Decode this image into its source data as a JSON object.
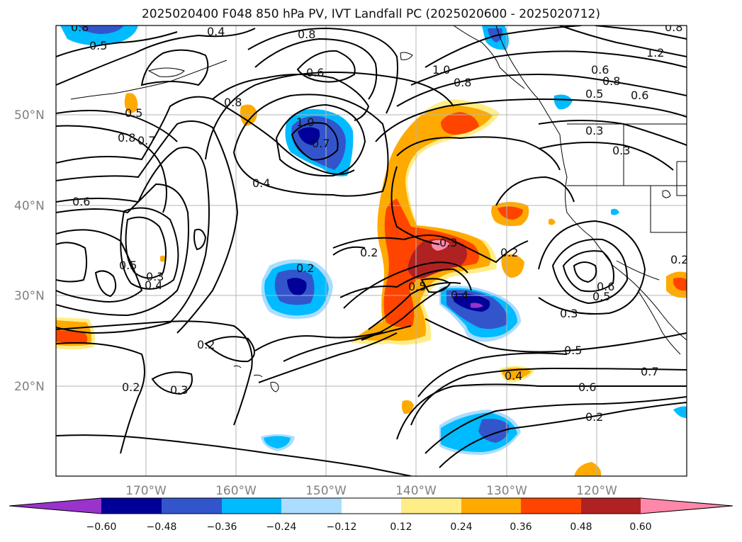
{
  "title": "2025020400 F048 850 hPa PV, IVT Landfall PC (2025020600 - 2025020712)",
  "lat_labels": [
    "50°N",
    "40°N",
    "30°N",
    "20°N"
  ],
  "lon_labels": [
    "170°W",
    "160°W",
    "150°W",
    "140°W",
    "130°W",
    "120°W"
  ],
  "colorbar": {
    "tick_labels": [
      "−0.60",
      "−0.48",
      "−0.36",
      "−0.24",
      "−0.12",
      "0.12",
      "0.24",
      "0.36",
      "0.48",
      "0.60"
    ],
    "colors": [
      "#9933cc",
      "#000099",
      "#3355cc",
      "#00bbff",
      "#aaddff",
      "#ffffff",
      "#ffee88",
      "#ffaa00",
      "#ff4400",
      "#b02222",
      "#ff88aa"
    ]
  },
  "contour_labels": [
    "0.8",
    "0.5",
    "0.4",
    "0.8",
    "0.6",
    "0.8",
    "1.0",
    "0.8",
    "0.8",
    "0.5",
    "0.6",
    "0.5",
    "0.8",
    "0.8",
    "0.7",
    "1.0",
    "0.7",
    "0.4",
    "0.6",
    "0.6",
    "0.5",
    "0.3",
    "0.4",
    "0.2",
    "0.2",
    "0.3",
    "0.2",
    "0.3",
    "0.5",
    "0.4",
    "0.2",
    "0.3",
    "0.6",
    "0.5",
    "0.3",
    "0.5",
    "0.4",
    "0.6",
    "0.7",
    "0.2",
    "0.3",
    "0.2",
    "1.2",
    "0.2"
  ],
  "colors": {
    "purple": "#9933cc",
    "navy": "#000099",
    "blue": "#3355cc",
    "cyan": "#00bbff",
    "lightblue": "#aaddff",
    "yellow": "#ffee88",
    "orange": "#ffaa00",
    "red": "#ff4400",
    "darkred": "#b02222",
    "pink": "#ff88aa"
  }
}
